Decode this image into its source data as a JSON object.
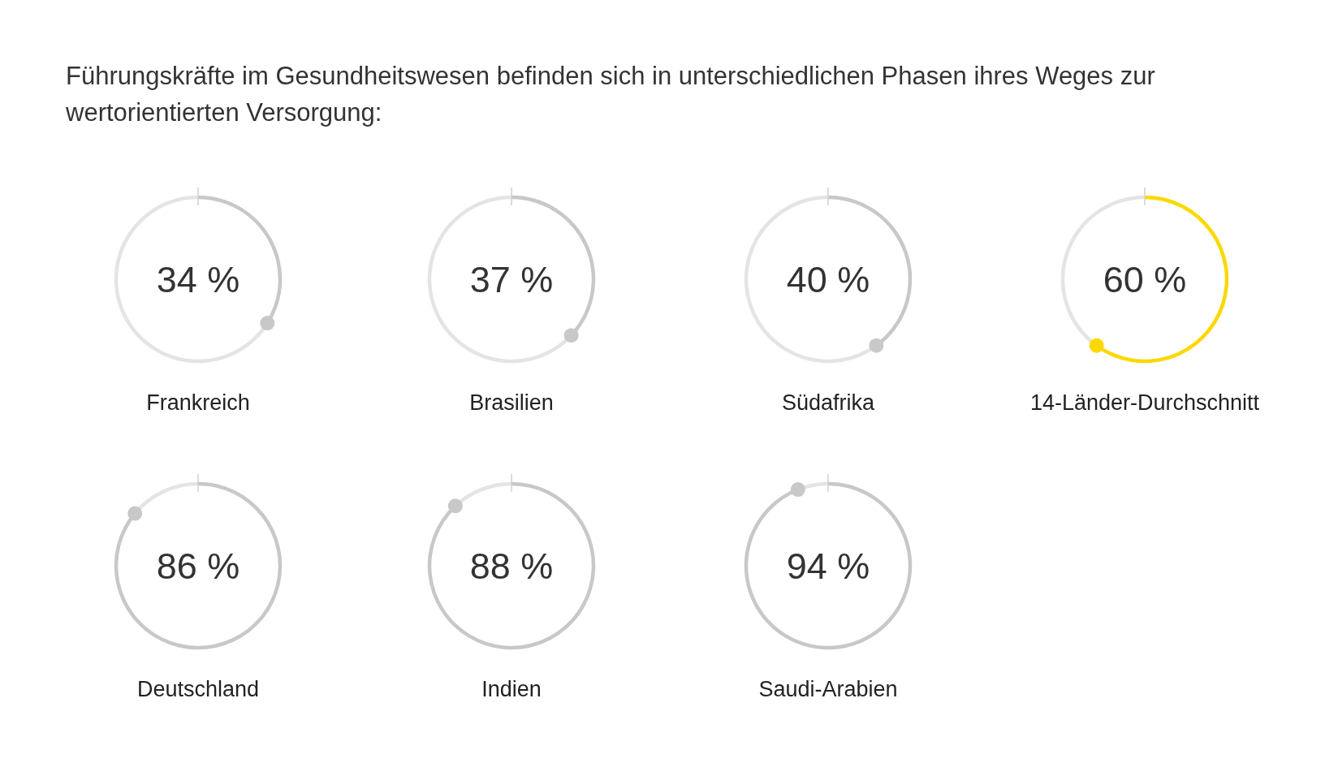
{
  "chart_data": [
    {
      "type": "other",
      "title": "Führungskräfte im Gesundheitswesen befinden sich in unterschiedlichen Phasen ihres Weges zur wertorientierten Versorgung:"
    },
    {
      "type": "donut",
      "xlabel": "Frankreich",
      "categories": [
        null,
        null
      ],
      "values": [
        34,
        66
      ],
      "colors": [
        "#c8c8c8",
        "#e4e4e4"
      ],
      "annotations": [
        "34 %"
      ]
    },
    {
      "type": "donut",
      "xlabel": "Brasilien",
      "categories": [
        null,
        null
      ],
      "values": [
        37,
        63
      ],
      "colors": [
        "#c8c8c8",
        "#e4e4e4"
      ],
      "annotations": [
        "37 %"
      ]
    },
    {
      "type": "donut",
      "xlabel": "Südafrika",
      "categories": [
        null,
        null
      ],
      "values": [
        40,
        60
      ],
      "colors": [
        "#c8c8c8",
        "#e4e4e4"
      ],
      "annotations": [
        "40 %"
      ]
    },
    {
      "type": "donut",
      "xlabel": "14-Länder-Durchschnitt",
      "categories": [
        null,
        null
      ],
      "values": [
        60,
        40
      ],
      "colors": [
        "#fcd800",
        "#e4e4e4"
      ],
      "annotations": [
        "60 %"
      ]
    },
    {
      "type": "donut",
      "xlabel": "Deutschland",
      "categories": [
        null,
        null
      ],
      "values": [
        86,
        14
      ],
      "colors": [
        "#c8c8c8",
        "#e4e4e4"
      ],
      "annotations": [
        "86 %"
      ]
    },
    {
      "type": "donut",
      "xlabel": "Indien",
      "categories": [
        null,
        null
      ],
      "values": [
        88,
        12
      ],
      "colors": [
        "#c8c8c8",
        "#e4e4e4"
      ],
      "annotations": [
        "88 %"
      ]
    },
    {
      "type": "donut",
      "xlabel": "Saudi-Arabien",
      "categories": [
        null,
        null
      ],
      "values": [
        94,
        6
      ],
      "colors": [
        "#c8c8c8",
        "#e4e4e4"
      ],
      "annotations": [
        "94 %"
      ]
    }
  ]
}
